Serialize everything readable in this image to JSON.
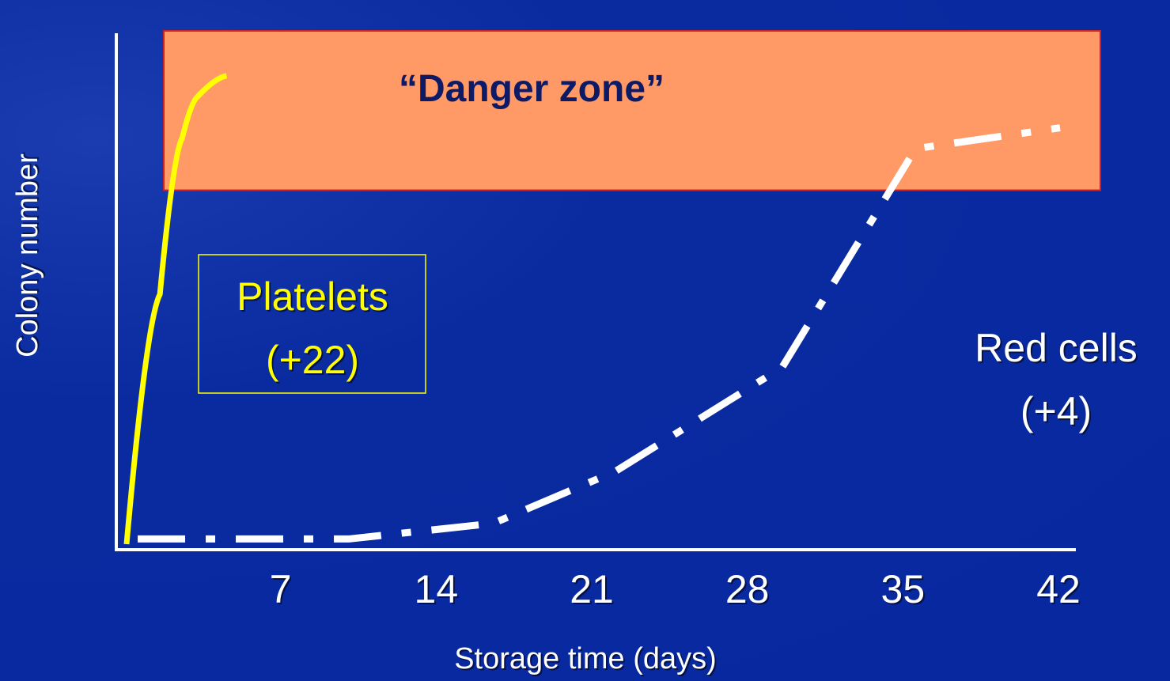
{
  "chart_data": {
    "type": "line",
    "title": "",
    "xlabel": "Storage time (days)",
    "ylabel": "Colony number",
    "x_ticks": [
      "7",
      "14",
      "21",
      "28",
      "35",
      "42"
    ],
    "xlim": [
      0,
      42
    ],
    "ylim": [
      0,
      100
    ],
    "danger_zone": {
      "label": "“Danger zone”",
      "y_from": 68,
      "y_to": 100,
      "color": "#ff9966"
    },
    "series": [
      {
        "name": "Platelets",
        "label_lines": [
          "Platelets",
          "(+22)"
        ],
        "color": "#ffff00",
        "style": "solid",
        "points": [
          [
            0,
            0
          ],
          [
            1.5,
            48
          ],
          [
            2.5,
            78
          ],
          [
            3.2,
            86
          ],
          [
            4.5,
            90
          ]
        ]
      },
      {
        "name": "Red cells",
        "label_lines": [
          "Red cells",
          "(+4)"
        ],
        "color": "#ffffff",
        "style": "dashdot",
        "points": [
          [
            0.5,
            1
          ],
          [
            10,
            1
          ],
          [
            16.5,
            4
          ],
          [
            22,
            14
          ],
          [
            29.5,
            34
          ],
          [
            35.5,
            76
          ],
          [
            42,
            80
          ]
        ]
      }
    ]
  }
}
